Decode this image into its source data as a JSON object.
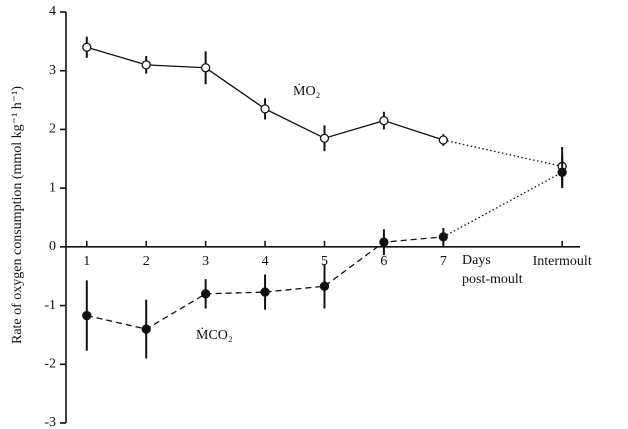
{
  "chart_data": {
    "type": "line",
    "ylabel": "Rate of oxygen consumption (mmol kg⁻¹ h⁻¹)",
    "xlabel_lines": [
      "Days",
      "post-moult"
    ],
    "x": [
      1,
      2,
      3,
      4,
      5,
      6,
      7,
      9
    ],
    "xlim": [
      0.65,
      9.3
    ],
    "xticks": [
      1,
      2,
      3,
      4,
      5,
      6,
      7,
      {
        "value": 9,
        "label": "Intermoult"
      }
    ],
    "ylim": [
      -3,
      4
    ],
    "yticks": [
      -3,
      -2,
      -1,
      0,
      1,
      2,
      3,
      4
    ],
    "series": [
      {
        "name": "ṀO₂",
        "color": "#111111",
        "marker": "open",
        "line_style": "solid",
        "final_segment_style": "dotted",
        "values": [
          3.4,
          3.1,
          3.05,
          2.35,
          1.85,
          2.15,
          1.82,
          1.37
        ],
        "errors": [
          0.18,
          0.15,
          0.28,
          0.18,
          0.22,
          0.15,
          0.1,
          0.33
        ]
      },
      {
        "name": "ṀCO₂",
        "color": "#111111",
        "marker": "filled",
        "line_style": "dashed",
        "final_segment_style": "dotted",
        "values": [
          -1.17,
          -1.4,
          -0.8,
          -0.77,
          -0.67,
          0.08,
          0.17,
          1.27
        ],
        "errors": [
          0.6,
          0.5,
          0.25,
          0.3,
          0.38,
          0.22,
          0.15,
          0.27
        ]
      }
    ]
  }
}
